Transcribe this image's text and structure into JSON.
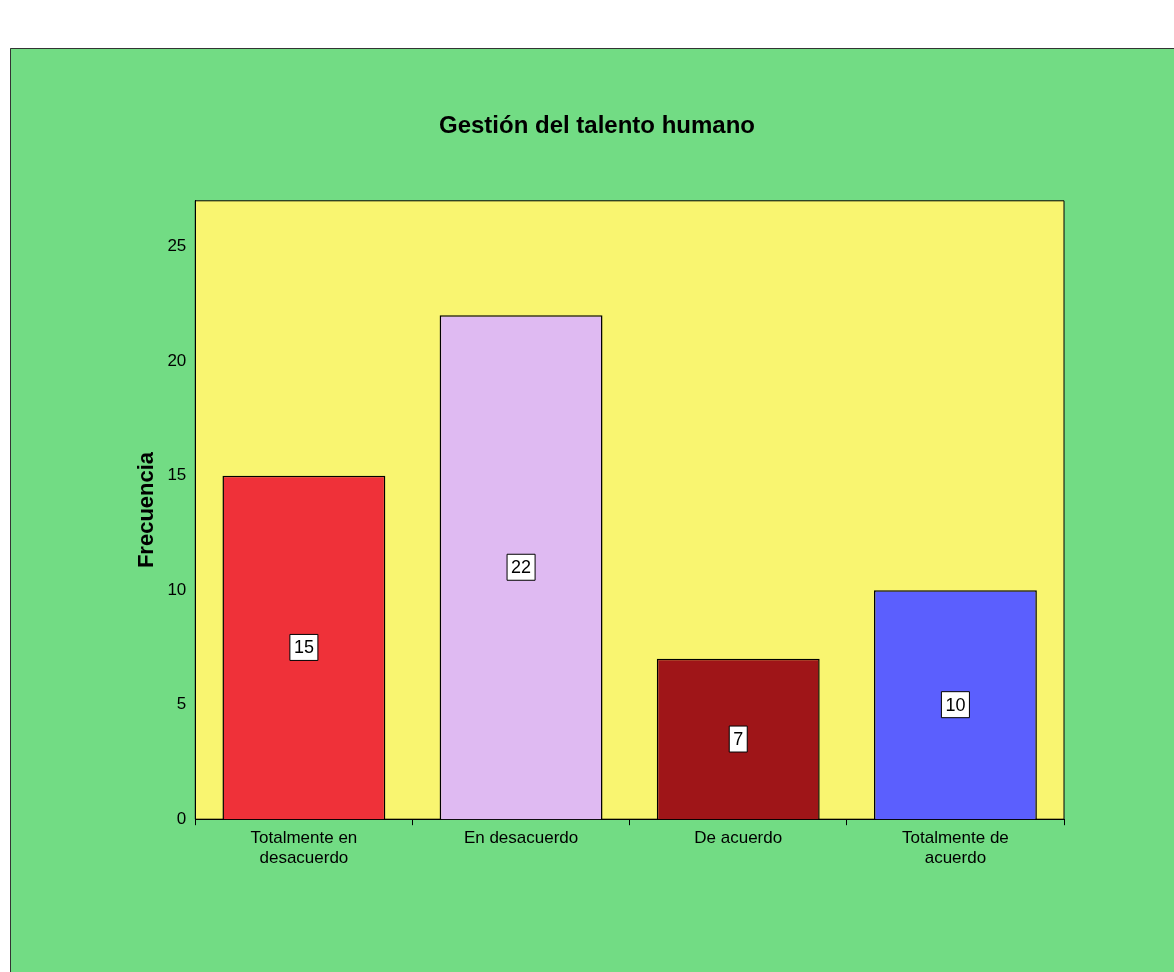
{
  "chart_data": {
    "type": "bar",
    "title": "Gestión del talento humano",
    "ylabel": "Frecuencia",
    "categories": [
      "Totalmente en desacuerdo",
      "En desacuerdo",
      "De acuerdo",
      "Totalmente de acuerdo"
    ],
    "values": [
      15,
      22,
      7,
      10
    ],
    "colors": [
      "#ef3139",
      "#dfbaf2",
      "#9f1518",
      "#5b5ffe"
    ],
    "ylim": [
      0,
      27
    ],
    "yticks": [
      0,
      5,
      10,
      15,
      20,
      25
    ],
    "grid": false,
    "legend": false,
    "data_labels": true
  }
}
